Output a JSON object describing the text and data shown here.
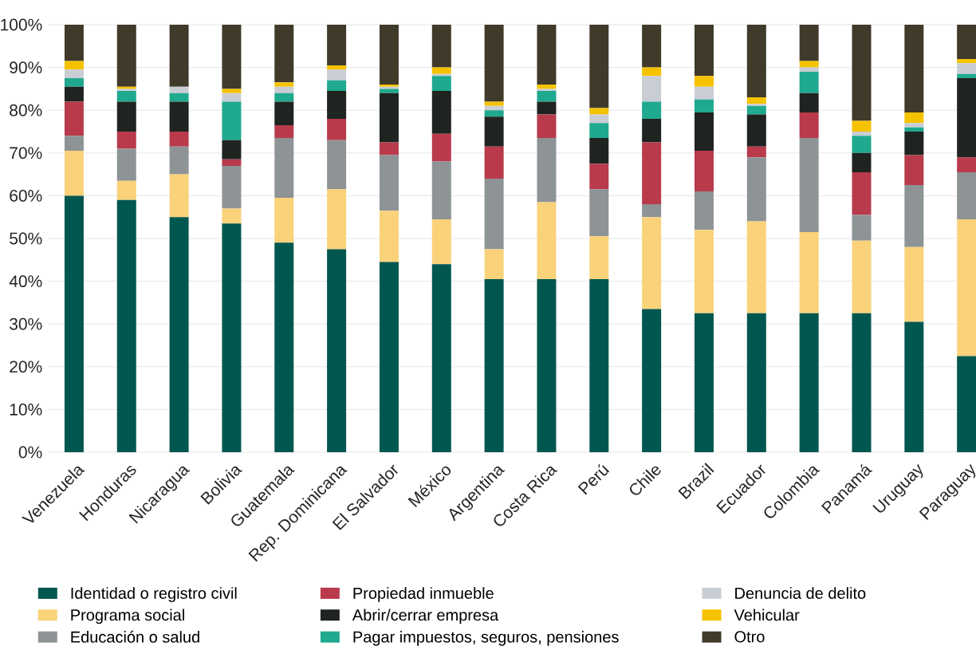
{
  "chart_data": {
    "type": "bar",
    "stacked": true,
    "categories": [
      "Venezuela",
      "Honduras",
      "Nicaragua",
      "Bolivia",
      "Guatemala",
      "Rep. Dominicana",
      "El Salvador",
      "México",
      "Argentina",
      "Costa Rica",
      "Perú",
      "Chile",
      "Brazil",
      "Ecuador",
      "Colombia",
      "Panamá",
      "Uruguay",
      "Paraguay"
    ],
    "series": [
      {
        "name": "Identidad o registro civil",
        "color": "#00574f",
        "values": [
          60,
          59,
          55,
          53.5,
          49,
          47.5,
          44.5,
          44,
          40.5,
          40.5,
          40.5,
          33.5,
          32.5,
          32.5,
          32.5,
          32.5,
          30.5,
          22.5
        ]
      },
      {
        "name": "Programa social",
        "color": "#f9d27a",
        "values": [
          10.5,
          4.5,
          10,
          3.5,
          10.5,
          14,
          12,
          10.5,
          7,
          18,
          10,
          21.5,
          19.5,
          21.5,
          19,
          17,
          17.5,
          32
        ]
      },
      {
        "name": "Educación o salud",
        "color": "#8e9396",
        "values": [
          3.5,
          7.5,
          6.5,
          10,
          14,
          11.5,
          13,
          13.5,
          16.5,
          15,
          11,
          3,
          9,
          15,
          22,
          6,
          14.5,
          11
        ]
      },
      {
        "name": "Propiedad inmueble",
        "color": "#b83a4b",
        "values": [
          8,
          4,
          3.5,
          1.5,
          3,
          5,
          3,
          6.5,
          7.5,
          5.5,
          6,
          14.5,
          9.5,
          2.5,
          6,
          10,
          7,
          3.5
        ]
      },
      {
        "name": "Abrir/cerrar empresa",
        "color": "#1f2421",
        "values": [
          3.5,
          7,
          7,
          4.5,
          5.5,
          6.5,
          11.5,
          10,
          7,
          3,
          6,
          5.5,
          9,
          7.5,
          4.5,
          4.5,
          5.5,
          18.5
        ]
      },
      {
        "name": "Pagar impuestos, seguros, pensiones",
        "color": "#1fa98e",
        "values": [
          2,
          2.5,
          2,
          9,
          2,
          2.5,
          1,
          3.5,
          1.5,
          2.5,
          3.5,
          4,
          3,
          2,
          5,
          4,
          1,
          1
        ]
      },
      {
        "name": "Denuncia de delito",
        "color": "#c9cdd4",
        "values": [
          2,
          0.5,
          1.5,
          2,
          1.5,
          2.5,
          0.5,
          0.5,
          1,
          0.5,
          2,
          6,
          3,
          0.5,
          1,
          1,
          1,
          2.5
        ]
      },
      {
        "name": "Vehicular",
        "color": "#f5c200",
        "values": [
          2,
          0.5,
          0,
          1,
          1,
          1,
          0.5,
          1.5,
          1,
          1,
          1.5,
          2,
          2.5,
          1.5,
          1.5,
          2.5,
          2.5,
          1
        ]
      },
      {
        "name": "Otro",
        "color": "#3f3a2a",
        "values": [
          8.5,
          14.5,
          14.5,
          15,
          13.5,
          9.5,
          14,
          10,
          18,
          14,
          19.5,
          10,
          12,
          17,
          8.5,
          22.5,
          20.5,
          8
        ]
      }
    ],
    "ylim": [
      0,
      100
    ],
    "yticks": [
      {
        "value": 0,
        "label": "0%"
      },
      {
        "value": 10,
        "label": "10%"
      },
      {
        "value": 20,
        "label": "20%"
      },
      {
        "value": 30,
        "label": "30%"
      },
      {
        "value": 40,
        "label": "40%"
      },
      {
        "value": 50,
        "label": "50%"
      },
      {
        "value": 60,
        "label": "60%"
      },
      {
        "value": 70,
        "label": "70%"
      },
      {
        "value": 80,
        "label": "80%"
      },
      {
        "value": 90,
        "label": "90%"
      },
      {
        "value": 100,
        "label": "100%"
      }
    ],
    "grid": "y",
    "legend": "bottom"
  }
}
